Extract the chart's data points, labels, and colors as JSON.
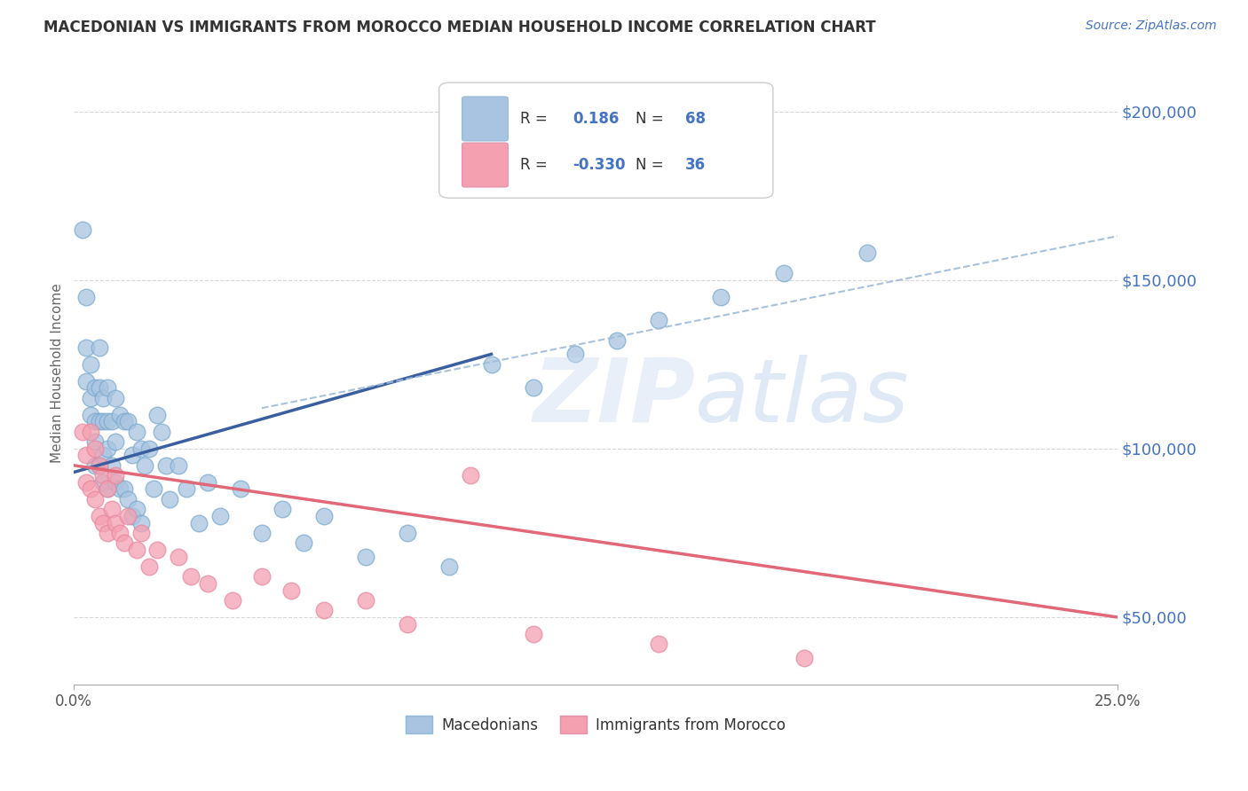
{
  "title": "MACEDONIAN VS IMMIGRANTS FROM MOROCCO MEDIAN HOUSEHOLD INCOME CORRELATION CHART",
  "source": "Source: ZipAtlas.com",
  "ylabel": "Median Household Income",
  "r_macedonian": 0.186,
  "n_macedonian": 68,
  "r_morocco": -0.33,
  "n_morocco": 36,
  "xlim": [
    0.0,
    0.25
  ],
  "ylim": [
    30000,
    215000
  ],
  "yticks": [
    50000,
    100000,
    150000,
    200000
  ],
  "ytick_labels": [
    "$50,000",
    "$100,000",
    "$150,000",
    "$200,000"
  ],
  "background_color": "#ffffff",
  "grid_color": "#cccccc",
  "text_color_blue": "#4472c4",
  "scatter_blue": "#a8c4e0",
  "scatter_pink": "#f4a0b0",
  "line_blue": "#3a5fa0",
  "line_pink": "#e06878",
  "line_dashed_color": "#a0bcd8",
  "macedonian_points_x": [
    0.002,
    0.003,
    0.003,
    0.003,
    0.004,
    0.004,
    0.004,
    0.005,
    0.005,
    0.005,
    0.005,
    0.006,
    0.006,
    0.006,
    0.006,
    0.007,
    0.007,
    0.007,
    0.007,
    0.008,
    0.008,
    0.008,
    0.008,
    0.009,
    0.009,
    0.01,
    0.01,
    0.01,
    0.011,
    0.011,
    0.012,
    0.012,
    0.013,
    0.013,
    0.014,
    0.014,
    0.015,
    0.015,
    0.016,
    0.016,
    0.017,
    0.018,
    0.019,
    0.02,
    0.021,
    0.022,
    0.023,
    0.025,
    0.027,
    0.03,
    0.032,
    0.035,
    0.04,
    0.045,
    0.05,
    0.055,
    0.06,
    0.07,
    0.08,
    0.09,
    0.1,
    0.11,
    0.12,
    0.13,
    0.14,
    0.155,
    0.17,
    0.19
  ],
  "macedonian_points_y": [
    165000,
    145000,
    130000,
    120000,
    125000,
    115000,
    110000,
    118000,
    108000,
    102000,
    95000,
    130000,
    118000,
    108000,
    95000,
    115000,
    108000,
    98000,
    90000,
    118000,
    108000,
    100000,
    88000,
    108000,
    95000,
    115000,
    102000,
    90000,
    110000,
    88000,
    108000,
    88000,
    108000,
    85000,
    98000,
    80000,
    105000,
    82000,
    100000,
    78000,
    95000,
    100000,
    88000,
    110000,
    105000,
    95000,
    85000,
    95000,
    88000,
    78000,
    90000,
    80000,
    88000,
    75000,
    82000,
    72000,
    80000,
    68000,
    75000,
    65000,
    125000,
    118000,
    128000,
    132000,
    138000,
    145000,
    152000,
    158000
  ],
  "morocco_points_x": [
    0.002,
    0.003,
    0.003,
    0.004,
    0.004,
    0.005,
    0.005,
    0.006,
    0.006,
    0.007,
    0.007,
    0.008,
    0.008,
    0.009,
    0.01,
    0.01,
    0.011,
    0.012,
    0.013,
    0.015,
    0.016,
    0.018,
    0.02,
    0.025,
    0.028,
    0.032,
    0.038,
    0.045,
    0.052,
    0.06,
    0.07,
    0.08,
    0.095,
    0.11,
    0.14,
    0.175
  ],
  "morocco_points_y": [
    105000,
    98000,
    90000,
    105000,
    88000,
    100000,
    85000,
    95000,
    80000,
    92000,
    78000,
    88000,
    75000,
    82000,
    92000,
    78000,
    75000,
    72000,
    80000,
    70000,
    75000,
    65000,
    70000,
    68000,
    62000,
    60000,
    55000,
    62000,
    58000,
    52000,
    55000,
    48000,
    92000,
    45000,
    42000,
    38000
  ],
  "mac_line_x0": 0.0,
  "mac_line_y0": 93000,
  "mac_line_x1": 0.1,
  "mac_line_y1": 128000,
  "mor_line_x0": 0.0,
  "mor_line_y0": 95000,
  "mor_line_x1": 0.25,
  "mor_line_y1": 50000,
  "dash_line_x0": 0.045,
  "dash_line_y0": 112000,
  "dash_line_x1": 0.25,
  "dash_line_y1": 163000
}
